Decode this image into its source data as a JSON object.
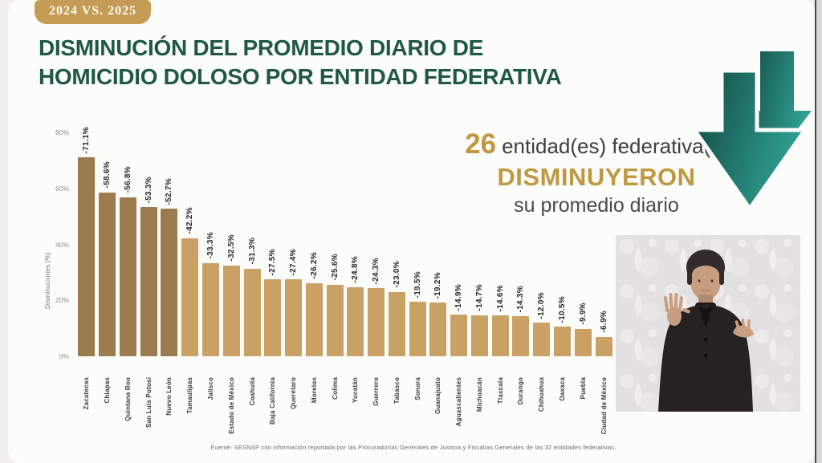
{
  "slide": {
    "badge": "2024 VS. 2025",
    "title_line1": "DISMINUCIÓN DEL PROMEDIO DIARIO DE",
    "title_line2": "HOMICIDIO DOLOSO POR ENTIDAD FEDERATIVA",
    "source": "Fuente: SESNSP con información reportada por las Procuradurías Generales de Justicia y Fiscalías Generales de las 32 entidades federativas."
  },
  "callout": {
    "count": "26",
    "count_suffix": "entidad(es) federativa(s)",
    "emphasis": "DISMINUYERON",
    "tail": "su promedio diario"
  },
  "chart_data": {
    "type": "bar",
    "title": "Disminución del promedio diario de homicidio doloso por entidad federativa, 2024 vs. 2025",
    "xlabel": "",
    "ylabel": "Disminuciones (%)",
    "ylim": [
      0,
      80
    ],
    "yticks": [
      "80%",
      "60%",
      "40%",
      "20%",
      "0%"
    ],
    "grid": false,
    "legend": false,
    "categories": [
      "Zacatecas",
      "Chiapas",
      "Quintana Roo",
      "San Luis Potosí",
      "Nuevo León",
      "Tamaulipas",
      "Jalisco",
      "Estado de México",
      "Coahuila",
      "Baja California",
      "Querétaro",
      "Morelos",
      "Colima",
      "Yucatán",
      "Guerrero",
      "Tabasco",
      "Sonora",
      "Guanajuato",
      "Aguascalientes",
      "Michoacán",
      "Tlaxcala",
      "Durango",
      "Chihuahua",
      "Oaxaca",
      "Puebla",
      "Ciudad de México"
    ],
    "values": [
      -71.1,
      -58.6,
      -56.8,
      -53.3,
      -52.7,
      -42.2,
      -33.3,
      -32.5,
      -31.3,
      -27.5,
      -27.4,
      -26.2,
      -25.6,
      -24.8,
      -24.3,
      -23.0,
      -19.5,
      -19.2,
      -14.9,
      -14.7,
      -14.6,
      -14.3,
      -12.0,
      -10.5,
      -9.9,
      -6.9
    ],
    "value_label_suffix": "%",
    "bar_style": {
      "dark_color": "#9c7b4e",
      "light_color": "#c9a164",
      "dark_bar_count": 5
    }
  },
  "icons": {
    "down_arrows": "double-down-arrow-icon",
    "interpreter": "sign-language-interpreter-video"
  },
  "colors": {
    "title_green": "#1f5847",
    "gold": "#be9941",
    "badge_gold": "#c59c55",
    "arrow_teal_dark": "#12473f",
    "arrow_teal_light": "#30a093"
  }
}
